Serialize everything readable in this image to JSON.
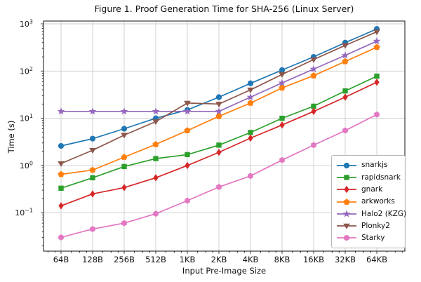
{
  "figure": {
    "title": "Figure 1. Proof Generation Time for SHA-256 (Linux Server)",
    "xlabel": "Input Pre-Image Size",
    "ylabel": "Time (s)"
  },
  "chart_data": {
    "type": "line",
    "title": "Figure 1. Proof Generation Time for SHA-256 (Linux Server)",
    "xlabel": "Input Pre-Image Size",
    "ylabel": "Time (s)",
    "x_scale": "log2",
    "y_scale": "log10",
    "grid": true,
    "legend_position": "lower right",
    "ylim": [
      0.015,
      1150
    ],
    "y_ticks_exponents": [
      -1,
      0,
      1,
      2,
      3
    ],
    "categories": [
      "64B",
      "128B",
      "256B",
      "512B",
      "1KB",
      "2KB",
      "4KB",
      "8KB",
      "16KB",
      "32KB",
      "64KB"
    ],
    "series": [
      {
        "name": "snarkjs",
        "color": "#1f77b4",
        "marker": "circle",
        "values": [
          2.6,
          3.7,
          6.0,
          10,
          15,
          28,
          55,
          105,
          200,
          400,
          780
        ]
      },
      {
        "name": "rapidsnark",
        "color": "#2ca02c",
        "marker": "square",
        "values": [
          0.33,
          0.55,
          0.95,
          1.4,
          1.7,
          2.7,
          5.0,
          10,
          18,
          38,
          78
        ]
      },
      {
        "name": "gnark",
        "color": "#d62728",
        "marker": "diamond",
        "values": [
          0.14,
          0.25,
          0.34,
          0.55,
          1.0,
          1.9,
          3.8,
          7.2,
          14,
          28,
          58
        ]
      },
      {
        "name": "arkworks",
        "color": "#ff7f0e",
        "marker": "pentagon",
        "values": [
          0.65,
          0.8,
          1.5,
          2.8,
          5.5,
          11,
          21,
          44,
          80,
          160,
          320
        ]
      },
      {
        "name": "Halo2 (KZG)",
        "color": "#9467bd",
        "marker": "star",
        "values": [
          14,
          14,
          14,
          14,
          14,
          14,
          28,
          56,
          110,
          215,
          430
        ]
      },
      {
        "name": "Plonky2",
        "color": "#8c564b",
        "marker": "triangle-down",
        "values": [
          1.1,
          2.1,
          4.4,
          8.5,
          21,
          20,
          40,
          85,
          175,
          350,
          680
        ]
      },
      {
        "name": "Starky",
        "color": "#e377c2",
        "marker": "hexagon",
        "values": [
          0.03,
          0.045,
          0.06,
          0.095,
          0.18,
          0.35,
          0.6,
          1.3,
          2.7,
          5.5,
          12
        ]
      }
    ]
  }
}
